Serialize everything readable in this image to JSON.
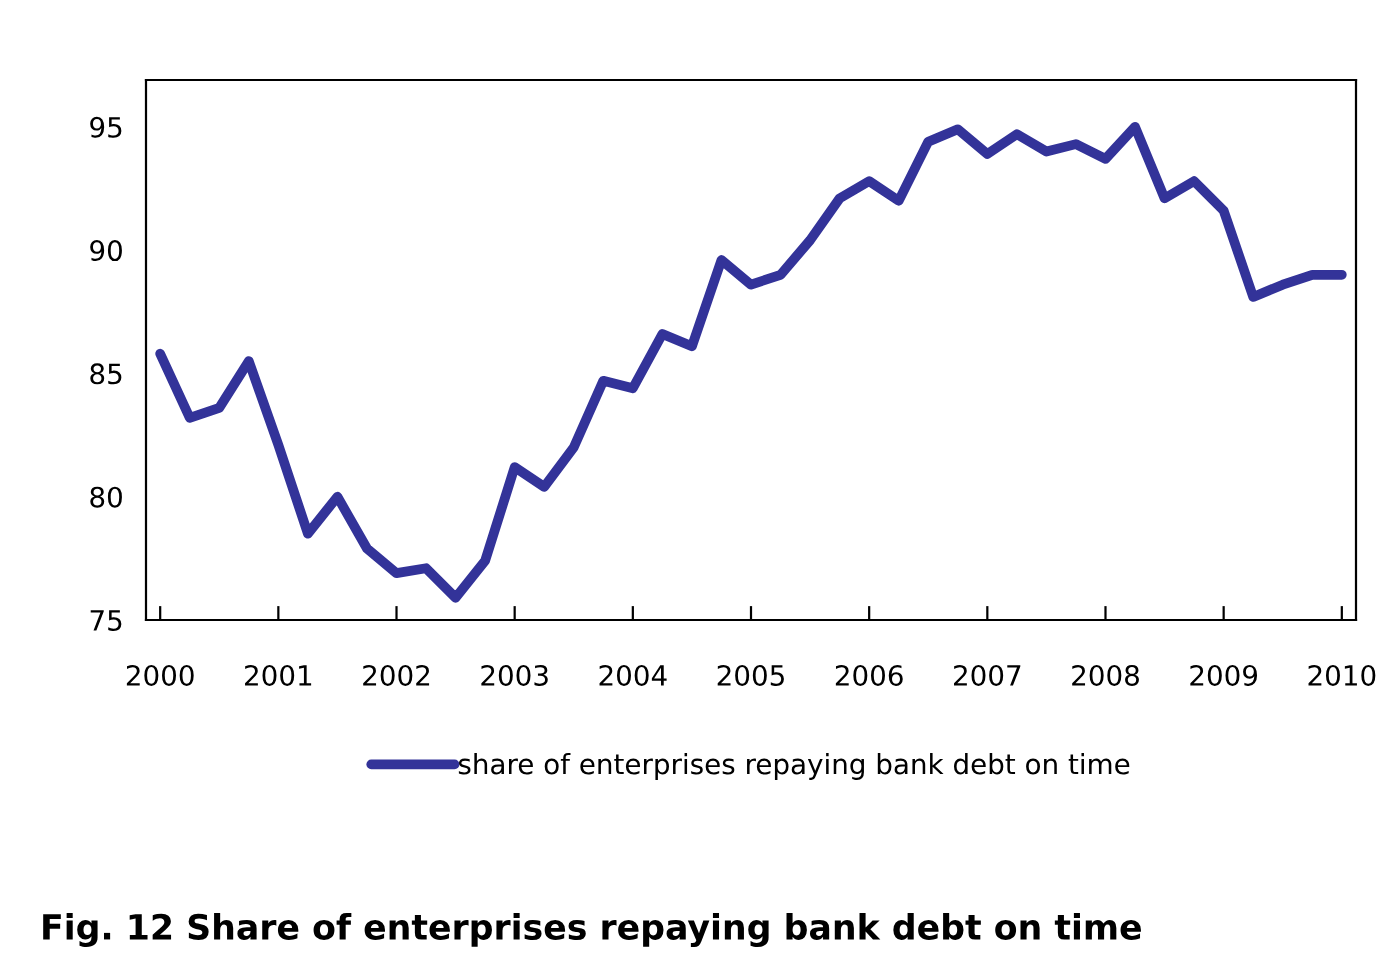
{
  "chart_data": {
    "type": "line",
    "x": [
      2000,
      2000.25,
      2000.5,
      2000.75,
      2001,
      2001.25,
      2001.5,
      2001.75,
      2002,
      2002.25,
      2002.5,
      2002.75,
      2003,
      2003.25,
      2003.5,
      2003.75,
      2004,
      2004.25,
      2004.5,
      2004.75,
      2005,
      2005.25,
      2005.5,
      2005.75,
      2006,
      2006.25,
      2006.5,
      2006.75,
      2007,
      2007.25,
      2007.5,
      2007.75,
      2008,
      2008.25,
      2008.5,
      2008.75,
      2009,
      2009.25,
      2009.5,
      2009.75,
      2010
    ],
    "series": [
      {
        "name": "share of enterprises repaying bank debt on time",
        "color": "#333399",
        "values": [
          85.8,
          83.2,
          83.6,
          85.5,
          82.1,
          78.5,
          80.0,
          77.9,
          76.9,
          77.1,
          75.9,
          77.4,
          81.2,
          80.4,
          82.0,
          84.7,
          84.4,
          86.6,
          86.1,
          89.6,
          88.6,
          89.0,
          90.4,
          92.1,
          92.8,
          92.0,
          94.4,
          94.9,
          93.9,
          94.7,
          94.0,
          94.3,
          93.7,
          95.0,
          92.1,
          92.8,
          91.6,
          88.1,
          88.6,
          89.0,
          89.0
        ]
      }
    ],
    "xlim": [
      1999.88,
      2010.12
    ],
    "xticks": [
      2000,
      2001,
      2002,
      2003,
      2004,
      2005,
      2006,
      2007,
      2008,
      2009,
      2010
    ],
    "ylim": [
      75,
      96.9
    ],
    "yticks": [
      75,
      80,
      85,
      90,
      95
    ],
    "grid": false,
    "legend": "bottom",
    "marker": "none",
    "line_style": "solid",
    "annotations": [
      "Fig. 12 Share of enterprises repaying bank debt on time"
    ]
  }
}
